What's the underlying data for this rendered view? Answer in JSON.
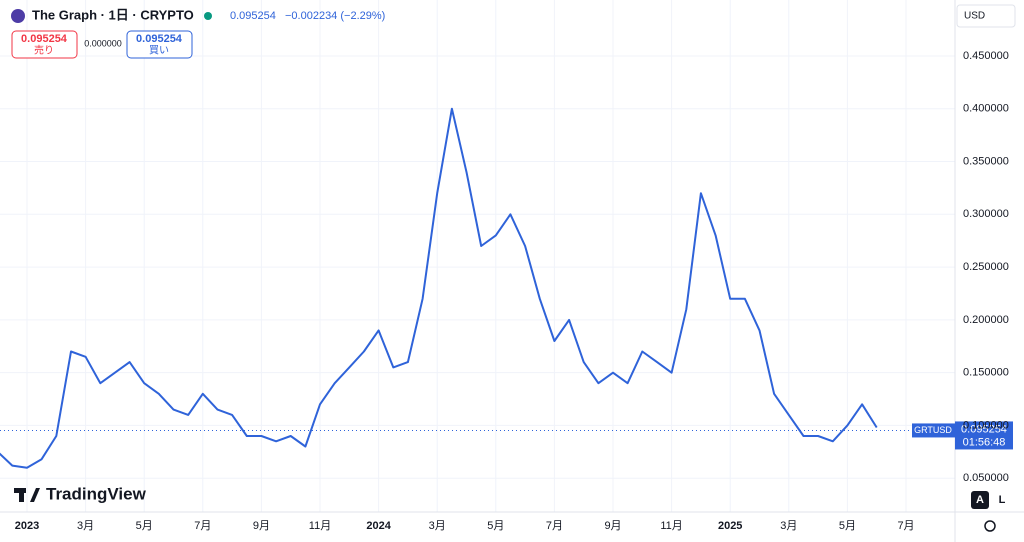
{
  "chart_data": {
    "type": "line",
    "title": "The Graph · 1日 · CRYPTO",
    "change_label": "−0.002234 (−2.29%)",
    "price_line": 0.095254,
    "sell_label": "売り",
    "buy_label": "買い",
    "spread": "0.000000",
    "currency": "USD",
    "symbol": "GRTUSD",
    "countdown": "01:56:48",
    "brand": "TradingView",
    "auto_button": "A",
    "log_button": "L",
    "categories": [
      null,
      null,
      "2023",
      null,
      null,
      null,
      "3月",
      null,
      null,
      null,
      "5月",
      null,
      null,
      null,
      "7月",
      null,
      null,
      null,
      "9月",
      null,
      null,
      null,
      "11月",
      null,
      null,
      null,
      "2024",
      null,
      null,
      null,
      "3月",
      null,
      null,
      null,
      "5月",
      null,
      null,
      null,
      "7月",
      null,
      null,
      null,
      "9月",
      null,
      null,
      null,
      "11月",
      null,
      null,
      null,
      "2025",
      null,
      null,
      null,
      "3月",
      null,
      null,
      null,
      "5月",
      null,
      null,
      null,
      "7月"
    ],
    "series": [
      {
        "name": "GRTUSD",
        "color": "#2f63d9",
        "values": [
          0.075,
          0.062,
          0.06,
          0.068,
          0.09,
          0.17,
          0.165,
          0.14,
          0.15,
          0.16,
          0.14,
          0.13,
          0.115,
          0.11,
          0.13,
          0.115,
          0.11,
          0.09,
          0.09,
          0.085,
          0.09,
          0.08,
          0.12,
          0.14,
          0.155,
          0.17,
          0.19,
          0.155,
          0.16,
          0.22,
          0.32,
          0.4,
          0.34,
          0.27,
          0.28,
          0.3,
          0.27,
          0.22,
          0.18,
          0.2,
          0.16,
          0.14,
          0.15,
          0.14,
          0.17,
          0.16,
          0.15,
          0.21,
          0.32,
          0.28,
          0.22,
          0.22,
          0.19,
          0.13,
          0.11,
          0.09,
          0.09,
          0.085,
          0.1,
          0.12,
          0.098,
          null,
          null
        ]
      }
    ],
    "ylim": [
      0.018,
      0.503
    ],
    "yticks": [
      {
        "value": 0.05,
        "label": "0.050000"
      },
      {
        "value": 0.1,
        "label": "0.100000"
      },
      {
        "value": 0.15,
        "label": "0.150000"
      },
      {
        "value": 0.2,
        "label": "0.200000"
      },
      {
        "value": 0.25,
        "label": "0.250000"
      },
      {
        "value": 0.3,
        "label": "0.300000"
      },
      {
        "value": 0.35,
        "label": "0.350000"
      },
      {
        "value": 0.4,
        "label": "0.400000"
      },
      {
        "value": 0.45,
        "label": "0.450000"
      }
    ],
    "grid": true
  }
}
